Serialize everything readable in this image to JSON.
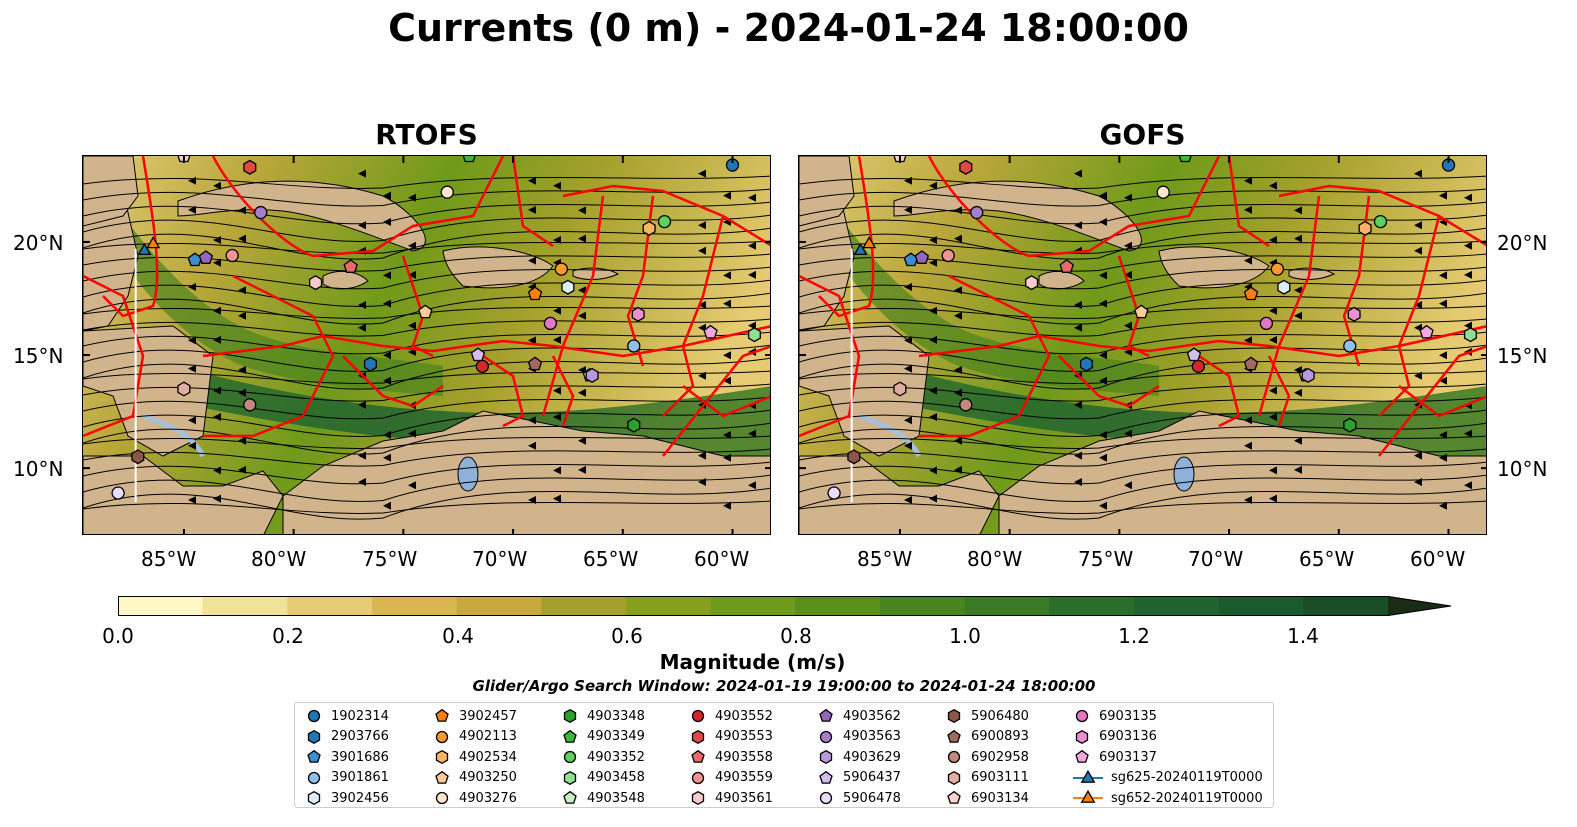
{
  "figure": {
    "title": "Currents (0 m) - 2024-01-24 18:00:00",
    "panels": [
      {
        "title": "RTOFS"
      },
      {
        "title": "GOFS"
      }
    ],
    "lat_ticks": [
      "20°N",
      "15°N",
      "10°N"
    ],
    "lon_ticks": [
      "85°W",
      "80°W",
      "75°W",
      "70°W",
      "65°W",
      "60°W"
    ],
    "colorbar": {
      "label": "Magnitude (m/s)",
      "ticks": [
        "0.0",
        "0.2",
        "0.4",
        "0.6",
        "0.8",
        "1.0",
        "1.2",
        "1.4"
      ],
      "min": 0.0,
      "max": 1.5,
      "extend": "max",
      "colors": [
        "#fdf7c6",
        "#f1e29b",
        "#e6cb72",
        "#d9b650",
        "#c9a83c",
        "#a5a02b",
        "#86a01e",
        "#6f9a1a",
        "#5a8f1a",
        "#4a841e",
        "#3b7a24",
        "#2a6e2a",
        "#1f6330",
        "#1b5a2c",
        "#1a4e27",
        "#1a3f20",
        "#1a2c18"
      ]
    },
    "subtitle": "Glider/Argo Search Window: 2024-01-19 19:00:00 to 2024-01-24 18:00:00",
    "colors": {
      "boundaries": "#ff0000",
      "land": "#d2b48c",
      "lakes": "#a7bfd9",
      "glider_track": "#ffffff"
    }
  },
  "legend": [
    {
      "label": "1902314",
      "marker": "circle",
      "color": "#1f77b4"
    },
    {
      "label": "2903766",
      "marker": "hexagon",
      "color": "#1f77b4"
    },
    {
      "label": "3901686",
      "marker": "pentagon",
      "color": "#3c8dd0"
    },
    {
      "label": "3901861",
      "marker": "circle",
      "color": "#8fc1e8"
    },
    {
      "label": "3902456",
      "marker": "hexagon",
      "color": "#ddeefa"
    },
    {
      "label": "3902457",
      "marker": "pentagon",
      "color": "#ff7f0e"
    },
    {
      "label": "4902113",
      "marker": "circle",
      "color": "#ff9933"
    },
    {
      "label": "4902534",
      "marker": "hexagon",
      "color": "#ffb366"
    },
    {
      "label": "4903250",
      "marker": "pentagon",
      "color": "#ffcc99"
    },
    {
      "label": "4903276",
      "marker": "circle",
      "color": "#ffe6cc"
    },
    {
      "label": "4903348",
      "marker": "hexagon",
      "color": "#2ca02c"
    },
    {
      "label": "4903349",
      "marker": "pentagon",
      "color": "#3cb83c"
    },
    {
      "label": "4903352",
      "marker": "circle",
      "color": "#5fcf5f"
    },
    {
      "label": "4903458",
      "marker": "hexagon",
      "color": "#8fdf8f"
    },
    {
      "label": "4903548",
      "marker": "pentagon",
      "color": "#c8f0c8"
    },
    {
      "label": "4903552",
      "marker": "circle",
      "color": "#d62728"
    },
    {
      "label": "4903553",
      "marker": "hexagon",
      "color": "#e04848"
    },
    {
      "label": "4903558",
      "marker": "pentagon",
      "color": "#e86a6a"
    },
    {
      "label": "4903559",
      "marker": "circle",
      "color": "#f09494"
    },
    {
      "label": "4903561",
      "marker": "hexagon",
      "color": "#f8caca"
    },
    {
      "label": "4903562",
      "marker": "pentagon",
      "color": "#9467bd"
    },
    {
      "label": "4903563",
      "marker": "circle",
      "color": "#a57fcc"
    },
    {
      "label": "4903629",
      "marker": "hexagon",
      "color": "#b899dd"
    },
    {
      "label": "5906437",
      "marker": "pentagon",
      "color": "#d2bdee"
    },
    {
      "label": "5906478",
      "marker": "circle",
      "color": "#eadcfb"
    },
    {
      "label": "5906480",
      "marker": "hexagon",
      "color": "#8c564b"
    },
    {
      "label": "6900893",
      "marker": "pentagon",
      "color": "#a06a5f"
    },
    {
      "label": "6902958",
      "marker": "circle",
      "color": "#c08a7f"
    },
    {
      "label": "6903111",
      "marker": "hexagon",
      "color": "#e0ada2"
    },
    {
      "label": "6903134",
      "marker": "pentagon",
      "color": "#f7d3cb"
    },
    {
      "label": "6903135",
      "marker": "circle",
      "color": "#e377c2"
    },
    {
      "label": "6903136",
      "marker": "hexagon",
      "color": "#ea8fd0"
    },
    {
      "label": "6903137",
      "marker": "pentagon",
      "color": "#f2a8de"
    },
    {
      "label": "sg625-20240119T0000",
      "marker": "triangle-line",
      "color": "#1f77b4"
    },
    {
      "label": "sg652-20240119T0000",
      "marker": "triangle-line",
      "color": "#ff7f0e"
    }
  ],
  "platforms": [
    {
      "id": "1902314",
      "lon": -60.0,
      "lat": 23.4
    },
    {
      "id": "2903766",
      "lon": -76.5,
      "lat": 14.6
    },
    {
      "id": "3901686",
      "lon": -84.5,
      "lat": 19.2
    },
    {
      "id": "3901861",
      "lon": -64.5,
      "lat": 15.4
    },
    {
      "id": "3902456",
      "lon": -67.5,
      "lat": 18.0
    },
    {
      "id": "3902457",
      "lon": -69.0,
      "lat": 17.7
    },
    {
      "id": "4902113",
      "lon": -67.8,
      "lat": 18.8
    },
    {
      "id": "4902534",
      "lon": -63.8,
      "lat": 20.6
    },
    {
      "id": "4903250",
      "lon": -74.0,
      "lat": 16.9
    },
    {
      "id": "4903276",
      "lon": -73.0,
      "lat": 22.2
    },
    {
      "id": "4903348",
      "lon": -64.5,
      "lat": 11.9
    },
    {
      "id": "4903349",
      "lon": -72.0,
      "lat": 23.8
    },
    {
      "id": "4903352",
      "lon": -63.1,
      "lat": 20.9
    },
    {
      "id": "4903458",
      "lon": -59.0,
      "lat": 15.9
    },
    {
      "id": "4903548",
      "lon": -66.5,
      "lat": 14.1
    },
    {
      "id": "4903552",
      "lon": -71.4,
      "lat": 14.5
    },
    {
      "id": "4903553",
      "lon": -82.0,
      "lat": 23.3
    },
    {
      "id": "4903558",
      "lon": -77.4,
      "lat": 18.9
    },
    {
      "id": "4903559",
      "lon": -82.8,
      "lat": 19.4
    },
    {
      "id": "4903561",
      "lon": -79.0,
      "lat": 18.2
    },
    {
      "id": "4903562",
      "lon": -84.0,
      "lat": 19.3
    },
    {
      "id": "4903563",
      "lon": -81.5,
      "lat": 21.3
    },
    {
      "id": "4903629",
      "lon": -66.4,
      "lat": 14.1
    },
    {
      "id": "5906437",
      "lon": -71.6,
      "lat": 15.0
    },
    {
      "id": "5906478",
      "lon": -88.0,
      "lat": 8.9
    },
    {
      "id": "5906480",
      "lon": -87.1,
      "lat": 10.5
    },
    {
      "id": "6900893",
      "lon": -69.0,
      "lat": 14.6
    },
    {
      "id": "6902958",
      "lon": -82.0,
      "lat": 12.8
    },
    {
      "id": "6903111",
      "lon": -85.0,
      "lat": 13.5
    },
    {
      "id": "6903134",
      "lon": -85.0,
      "lat": 23.8
    },
    {
      "id": "6903135",
      "lon": -68.3,
      "lat": 16.4
    },
    {
      "id": "6903136",
      "lon": -64.3,
      "lat": 16.8
    },
    {
      "id": "6903137",
      "lon": -61.0,
      "lat": 16.0
    },
    {
      "id": "sg625-20240119T0000",
      "lon": -86.8,
      "lat": 19.6
    },
    {
      "id": "sg652-20240119T0000",
      "lon": -86.4,
      "lat": 19.9
    }
  ]
}
